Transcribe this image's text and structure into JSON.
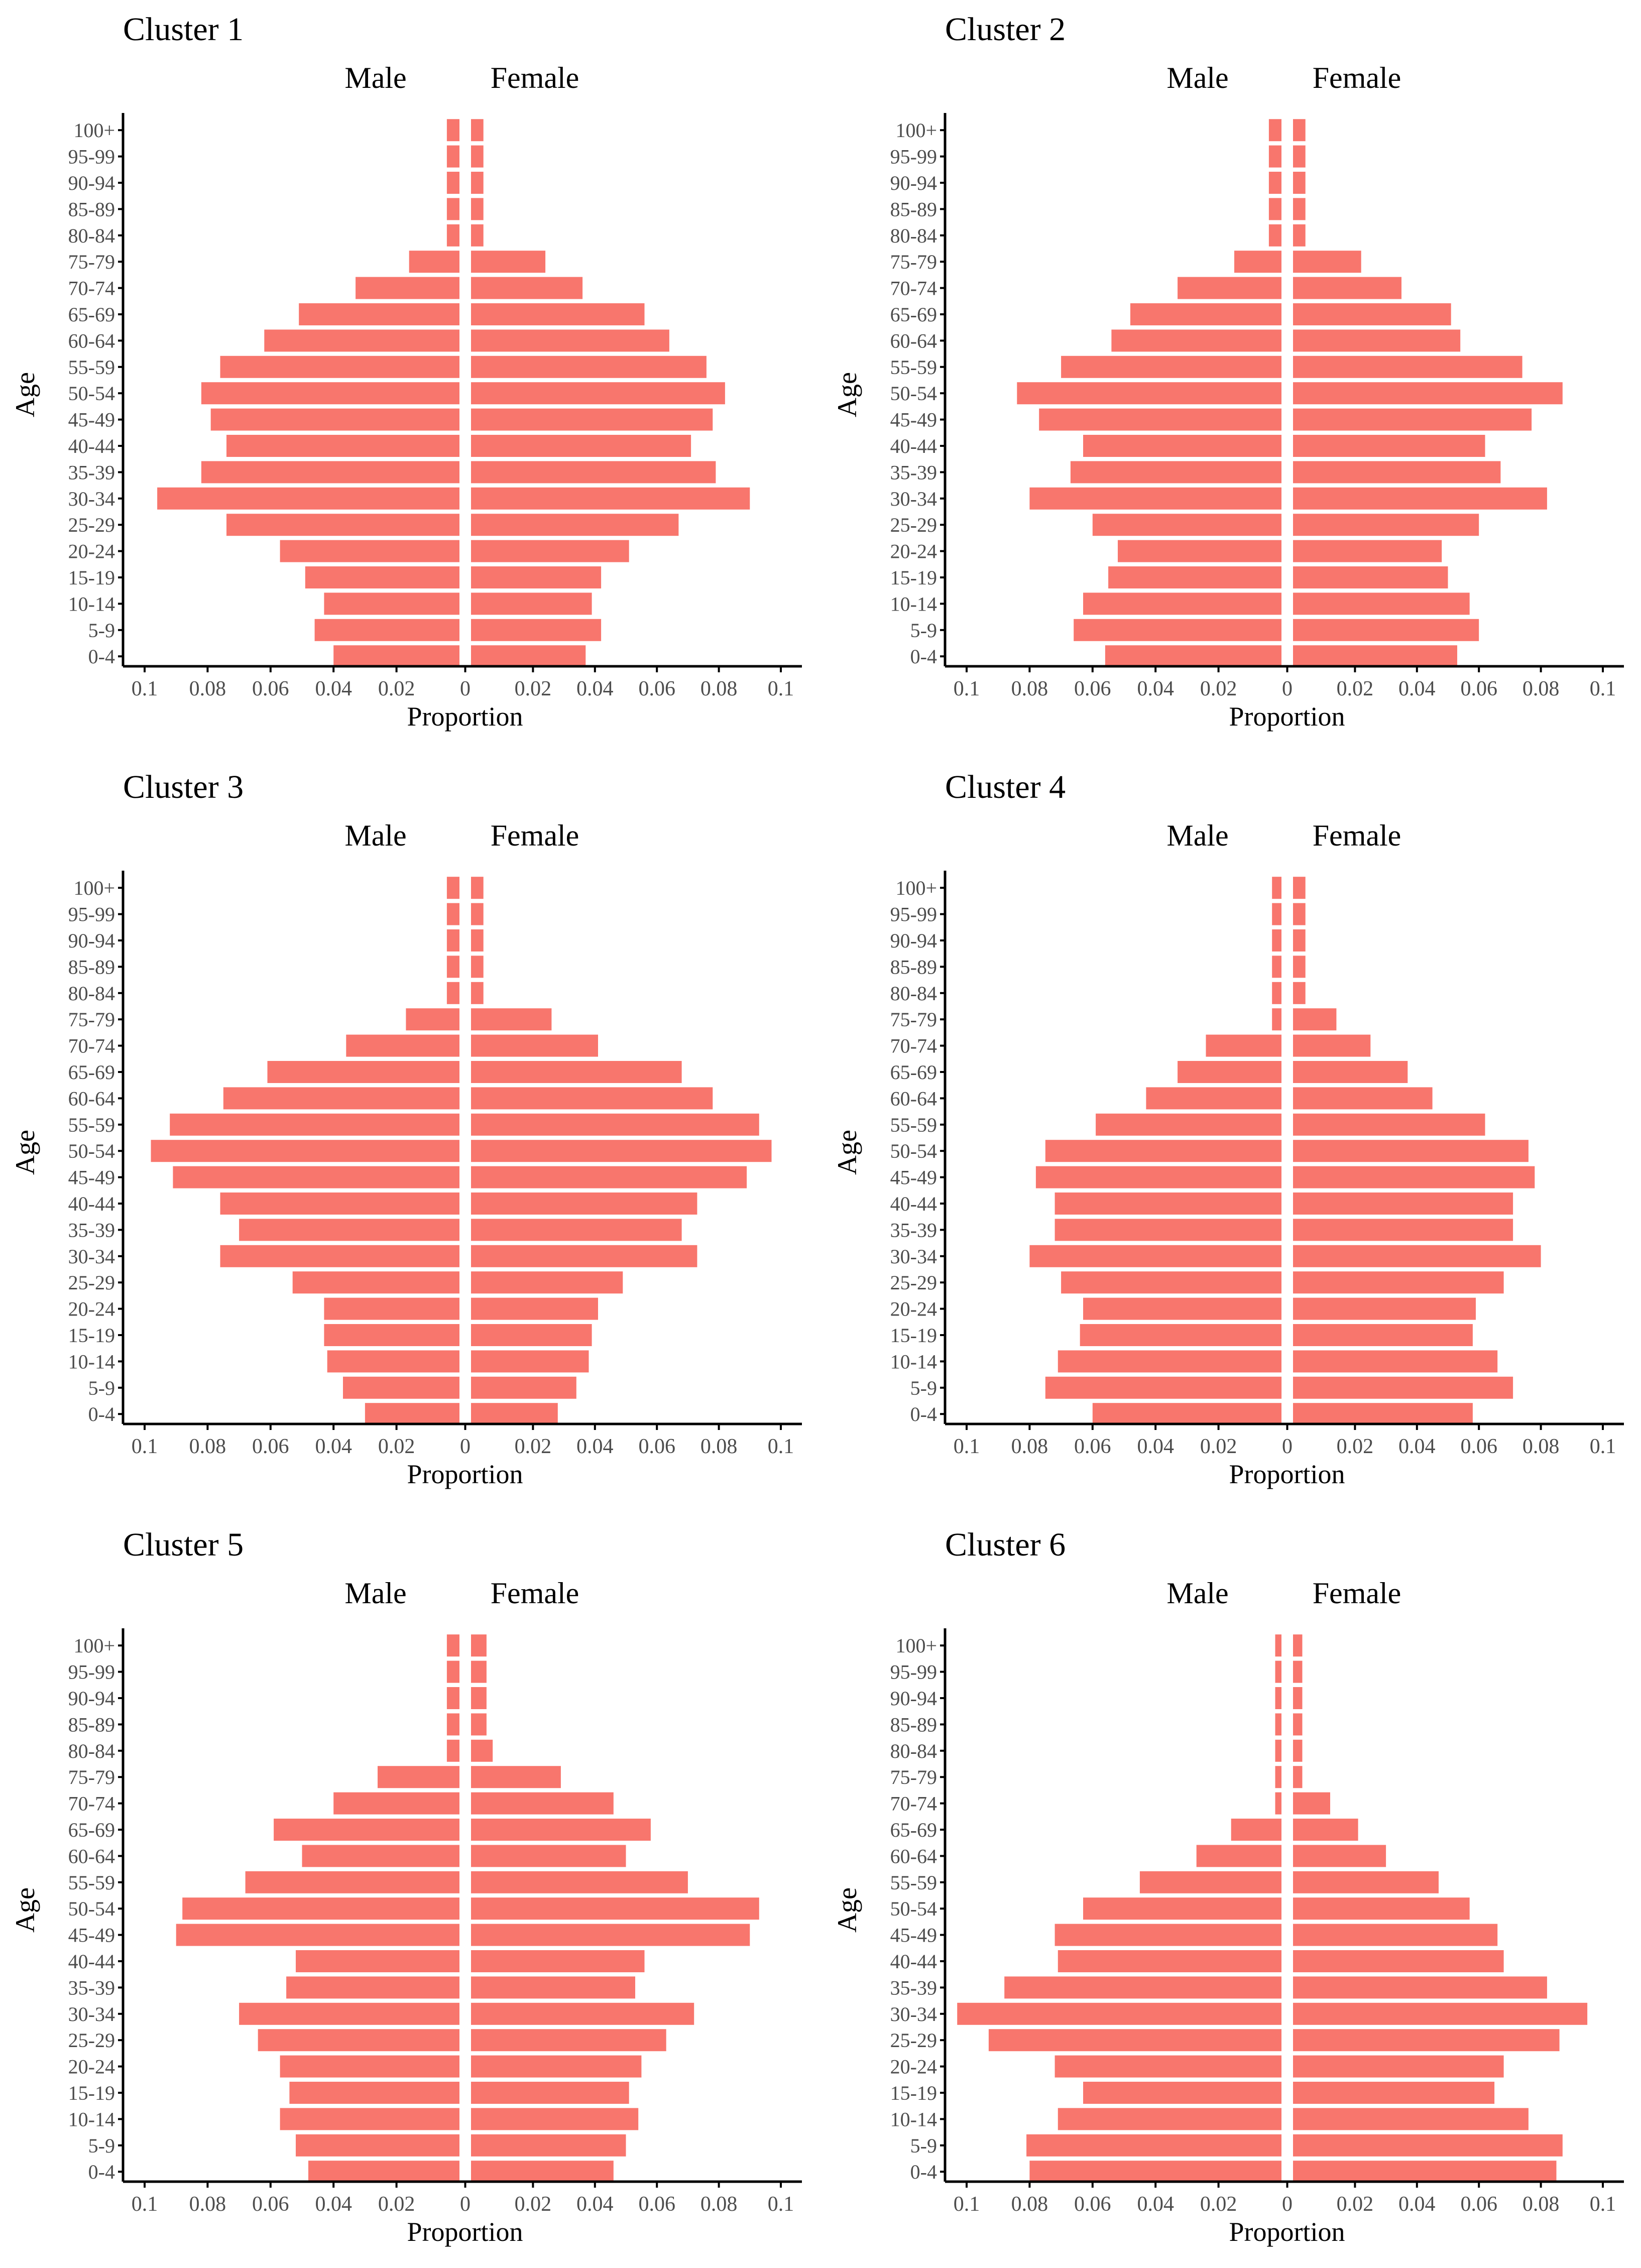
{
  "chart_data": [
    {
      "type": "bar",
      "title": "Cluster 1",
      "left_label": "Male",
      "right_label": "Female",
      "xlabel": "Proportion",
      "ylabel": "Age",
      "categories": [
        "0-4",
        "5-9",
        "10-14",
        "15-19",
        "20-24",
        "25-29",
        "30-34",
        "35-39",
        "40-44",
        "45-49",
        "50-54",
        "55-59",
        "60-64",
        "65-69",
        "70-74",
        "75-79",
        "80-84",
        "85-89",
        "90-94",
        "95-99",
        "100+"
      ],
      "series": [
        {
          "name": "Male",
          "values": [
            0.04,
            0.046,
            0.043,
            0.049,
            0.057,
            0.074,
            0.096,
            0.082,
            0.074,
            0.079,
            0.082,
            0.076,
            0.062,
            0.051,
            0.033,
            0.016,
            0.004,
            0.004,
            0.004,
            0.004,
            0.004
          ]
        },
        {
          "name": "Female",
          "values": [
            0.037,
            0.042,
            0.039,
            0.042,
            0.051,
            0.067,
            0.09,
            0.079,
            0.071,
            0.078,
            0.082,
            0.076,
            0.064,
            0.056,
            0.036,
            0.024,
            0.004,
            0.004,
            0.004,
            0.004,
            0.004
          ]
        }
      ],
      "xticks": [
        "0.1",
        "0.08",
        "0.06",
        "0.04",
        "0.02",
        "0",
        "0.02",
        "0.04",
        "0.06",
        "0.08",
        "0.1"
      ],
      "xlim": [
        -0.1,
        0.1
      ]
    },
    {
      "type": "bar",
      "title": "Cluster 2",
      "left_label": "Male",
      "right_label": "Female",
      "xlabel": "Proportion",
      "ylabel": "Age",
      "categories": [
        "0-4",
        "5-9",
        "10-14",
        "15-19",
        "20-24",
        "25-29",
        "30-34",
        "35-39",
        "40-44",
        "45-49",
        "50-54",
        "55-59",
        "60-64",
        "65-69",
        "70-74",
        "75-79",
        "80-84",
        "85-89",
        "90-94",
        "95-99",
        "100+"
      ],
      "series": [
        {
          "name": "Male",
          "values": [
            0.056,
            0.066,
            0.063,
            0.055,
            0.052,
            0.06,
            0.08,
            0.067,
            0.063,
            0.077,
            0.084,
            0.07,
            0.054,
            0.048,
            0.033,
            0.015,
            0.004,
            0.004,
            0.004,
            0.004,
            0.004
          ]
        },
        {
          "name": "Female",
          "values": [
            0.053,
            0.06,
            0.057,
            0.05,
            0.048,
            0.06,
            0.082,
            0.067,
            0.062,
            0.077,
            0.087,
            0.074,
            0.054,
            0.051,
            0.035,
            0.022,
            0.004,
            0.004,
            0.004,
            0.004,
            0.004
          ]
        }
      ],
      "xticks": [
        "0.1",
        "0.08",
        "0.06",
        "0.04",
        "0.02",
        "0",
        "0.02",
        "0.04",
        "0.06",
        "0.08",
        "0.1"
      ],
      "xlim": [
        -0.1,
        0.1
      ]
    },
    {
      "type": "bar",
      "title": "Cluster 3",
      "left_label": "Male",
      "right_label": "Female",
      "xlabel": "Proportion",
      "ylabel": "Age",
      "categories": [
        "0-4",
        "5-9",
        "10-14",
        "15-19",
        "20-24",
        "25-29",
        "30-34",
        "35-39",
        "40-44",
        "45-49",
        "50-54",
        "55-59",
        "60-64",
        "65-69",
        "70-74",
        "75-79",
        "80-84",
        "85-89",
        "90-94",
        "95-99",
        "100+"
      ],
      "series": [
        {
          "name": "Male",
          "values": [
            0.03,
            0.037,
            0.042,
            0.043,
            0.043,
            0.053,
            0.076,
            0.07,
            0.076,
            0.091,
            0.098,
            0.092,
            0.075,
            0.061,
            0.036,
            0.017,
            0.004,
            0.004,
            0.004,
            0.004,
            0.004
          ]
        },
        {
          "name": "Female",
          "values": [
            0.028,
            0.034,
            0.038,
            0.039,
            0.041,
            0.049,
            0.073,
            0.068,
            0.073,
            0.089,
            0.097,
            0.093,
            0.078,
            0.068,
            0.041,
            0.026,
            0.004,
            0.004,
            0.004,
            0.004,
            0.004
          ]
        }
      ],
      "xticks": [
        "0.1",
        "0.08",
        "0.06",
        "0.04",
        "0.02",
        "0",
        "0.02",
        "0.04",
        "0.06",
        "0.08",
        "0.1"
      ],
      "xlim": [
        -0.1,
        0.1
      ]
    },
    {
      "type": "bar",
      "title": "Cluster 4",
      "left_label": "Male",
      "right_label": "Female",
      "xlabel": "Proportion",
      "ylabel": "Age",
      "categories": [
        "0-4",
        "5-9",
        "10-14",
        "15-19",
        "20-24",
        "25-29",
        "30-34",
        "35-39",
        "40-44",
        "45-49",
        "50-54",
        "55-59",
        "60-64",
        "65-69",
        "70-74",
        "75-79",
        "80-84",
        "85-89",
        "90-94",
        "95-99",
        "100+"
      ],
      "series": [
        {
          "name": "Male",
          "values": [
            0.06,
            0.075,
            0.071,
            0.064,
            0.063,
            0.07,
            0.08,
            0.072,
            0.072,
            0.078,
            0.075,
            0.059,
            0.043,
            0.033,
            0.024,
            0.003,
            0.003,
            0.003,
            0.003,
            0.003,
            0.003
          ]
        },
        {
          "name": "Female",
          "values": [
            0.058,
            0.071,
            0.066,
            0.058,
            0.059,
            0.068,
            0.08,
            0.071,
            0.071,
            0.078,
            0.076,
            0.062,
            0.045,
            0.037,
            0.025,
            0.014,
            0.004,
            0.004,
            0.004,
            0.004,
            0.004
          ]
        }
      ],
      "xticks": [
        "0.1",
        "0.08",
        "0.06",
        "0.04",
        "0.02",
        "0",
        "0.02",
        "0.04",
        "0.06",
        "0.08",
        "0.1"
      ],
      "xlim": [
        -0.1,
        0.1
      ]
    },
    {
      "type": "bar",
      "title": "Cluster 5",
      "left_label": "Male",
      "right_label": "Female",
      "xlabel": "Proportion",
      "ylabel": "Age",
      "categories": [
        "0-4",
        "5-9",
        "10-14",
        "15-19",
        "20-24",
        "25-29",
        "30-34",
        "35-39",
        "40-44",
        "45-49",
        "50-54",
        "55-59",
        "60-64",
        "65-69",
        "70-74",
        "75-79",
        "80-84",
        "85-89",
        "90-94",
        "95-99",
        "100+"
      ],
      "series": [
        {
          "name": "Male",
          "values": [
            0.048,
            0.052,
            0.057,
            0.054,
            0.057,
            0.064,
            0.07,
            0.055,
            0.052,
            0.09,
            0.088,
            0.068,
            0.05,
            0.059,
            0.04,
            0.026,
            0.004,
            0.004,
            0.004,
            0.004,
            0.004
          ]
        },
        {
          "name": "Female",
          "values": [
            0.046,
            0.05,
            0.054,
            0.051,
            0.055,
            0.063,
            0.072,
            0.053,
            0.056,
            0.09,
            0.093,
            0.07,
            0.05,
            0.058,
            0.046,
            0.029,
            0.007,
            0.005,
            0.005,
            0.005,
            0.005
          ]
        }
      ],
      "xticks": [
        "0.1",
        "0.08",
        "0.06",
        "0.04",
        "0.02",
        "0",
        "0.02",
        "0.04",
        "0.06",
        "0.08",
        "0.1"
      ],
      "xlim": [
        -0.1,
        0.1
      ]
    },
    {
      "type": "bar",
      "title": "Cluster 6",
      "left_label": "Male",
      "right_label": "Female",
      "xlabel": "Proportion",
      "ylabel": "Age",
      "categories": [
        "0-4",
        "5-9",
        "10-14",
        "15-19",
        "20-24",
        "25-29",
        "30-34",
        "35-39",
        "40-44",
        "45-49",
        "50-54",
        "55-59",
        "60-64",
        "65-69",
        "70-74",
        "75-79",
        "80-84",
        "85-89",
        "90-94",
        "95-99",
        "100+"
      ],
      "series": [
        {
          "name": "Male",
          "values": [
            0.08,
            0.081,
            0.071,
            0.063,
            0.072,
            0.093,
            0.103,
            0.088,
            0.071,
            0.072,
            0.063,
            0.045,
            0.027,
            0.016,
            0.002,
            0.002,
            0.002,
            0.002,
            0.002,
            0.002,
            0.002
          ]
        },
        {
          "name": "Female",
          "values": [
            0.085,
            0.087,
            0.076,
            0.065,
            0.068,
            0.086,
            0.095,
            0.082,
            0.068,
            0.066,
            0.057,
            0.047,
            0.03,
            0.021,
            0.012,
            0.003,
            0.003,
            0.003,
            0.003,
            0.003,
            0.003
          ]
        }
      ],
      "xticks": [
        "0.1",
        "0.08",
        "0.06",
        "0.04",
        "0.02",
        "0",
        "0.02",
        "0.04",
        "0.06",
        "0.08",
        "0.1"
      ],
      "xlim": [
        -0.1,
        0.1
      ]
    }
  ],
  "colors": {
    "bar": "#F8766D",
    "axis": "#000000",
    "tick_text": "#4d4d4d",
    "background": "#ffffff"
  }
}
